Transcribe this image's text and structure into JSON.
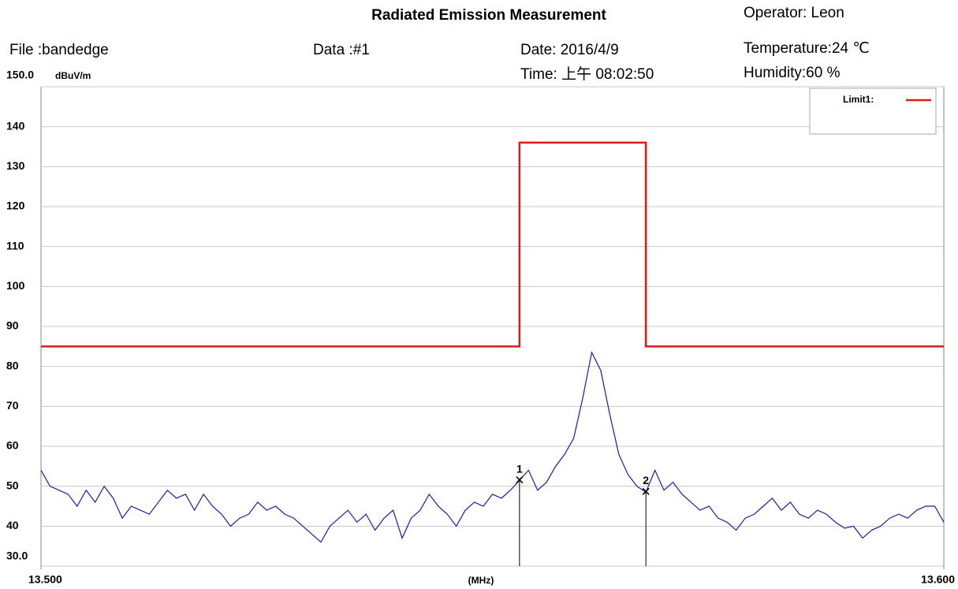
{
  "chart_data": {
    "type": "line",
    "title": "Radiated Emission Measurement",
    "operator": "Operator:   Leon",
    "file": "File :bandedge",
    "data_id": "Data :#1",
    "date": "Date: 2016/4/9",
    "time": "Time: 上午 08:02:50",
    "temperature": "Temperature:24 ℃",
    "humidity": "Humidity:60 %",
    "y_unit": "dBuV/m",
    "x_label": "(MHz)",
    "xlim": [
      13.5,
      13.6
    ],
    "xticks": [
      {
        "value": 13.5,
        "label": "13.500"
      },
      {
        "value": 13.6,
        "label": "13.600"
      }
    ],
    "ylim": [
      30,
      150
    ],
    "yticks": [
      {
        "value": 30,
        "label": "30.0"
      },
      40,
      50,
      60,
      70,
      80,
      90,
      100,
      110,
      120,
      130,
      140,
      {
        "value": 150,
        "label": "150.0"
      }
    ],
    "grid": true,
    "legend": "top-right",
    "series": [
      {
        "color": "#1c1ca8",
        "x": [
          13.5,
          13.501,
          13.502,
          13.503,
          13.504,
          13.505,
          13.506,
          13.507,
          13.508,
          13.509,
          13.51,
          13.511,
          13.512,
          13.513,
          13.514,
          13.515,
          13.516,
          13.517,
          13.518,
          13.519,
          13.52,
          13.521,
          13.522,
          13.523,
          13.524,
          13.525,
          13.526,
          13.527,
          13.528,
          13.529,
          13.53,
          13.531,
          13.532,
          13.533,
          13.534,
          13.535,
          13.536,
          13.537,
          13.538,
          13.539,
          13.54,
          13.541,
          13.542,
          13.543,
          13.544,
          13.545,
          13.546,
          13.547,
          13.548,
          13.549,
          13.55,
          13.551,
          13.552,
          13.553,
          13.554,
          13.555,
          13.556,
          13.557,
          13.558,
          13.559,
          13.56,
          13.561,
          13.562,
          13.563,
          13.564,
          13.565,
          13.566,
          13.567,
          13.568,
          13.569,
          13.57,
          13.571,
          13.572,
          13.573,
          13.574,
          13.575,
          13.576,
          13.577,
          13.578,
          13.579,
          13.58,
          13.581,
          13.582,
          13.583,
          13.584,
          13.585,
          13.586,
          13.587,
          13.588,
          13.589,
          13.59,
          13.591,
          13.592,
          13.593,
          13.594,
          13.595,
          13.596,
          13.597,
          13.598,
          13.599,
          13.6
        ],
        "values": [
          54,
          50,
          49,
          48,
          45,
          49,
          46,
          50,
          47,
          42,
          45,
          44,
          43,
          46,
          49,
          47,
          48,
          44,
          48,
          45,
          43,
          40,
          42,
          43,
          46,
          44,
          45,
          43,
          42,
          40,
          38,
          36,
          40,
          42,
          44,
          41,
          43,
          39,
          42,
          44,
          37,
          42,
          44,
          48,
          45,
          43,
          40,
          44,
          46,
          45,
          48,
          47,
          49,
          51.5,
          54,
          49,
          51,
          55,
          58,
          62,
          72,
          83.5,
          79,
          68,
          58,
          53,
          50,
          48.5,
          54,
          49,
          51,
          48,
          46,
          44,
          45,
          42,
          41,
          39,
          42,
          43,
          45,
          47,
          44,
          46,
          43,
          42,
          44,
          43,
          41,
          39.5,
          40,
          37,
          39,
          40,
          42,
          43,
          42,
          44,
          45,
          45,
          41
        ]
      },
      {
        "name": "Limit1:",
        "color": "#dd1a1a",
        "x": [
          13.5,
          13.553,
          13.553,
          13.567,
          13.567,
          13.6
        ],
        "values": [
          85,
          85,
          136,
          136,
          85,
          85
        ]
      }
    ],
    "markers": [
      {
        "label": "1",
        "x": 13.553,
        "value": 51.6
      },
      {
        "label": "2",
        "x": 13.567,
        "value": 48.7
      }
    ]
  }
}
